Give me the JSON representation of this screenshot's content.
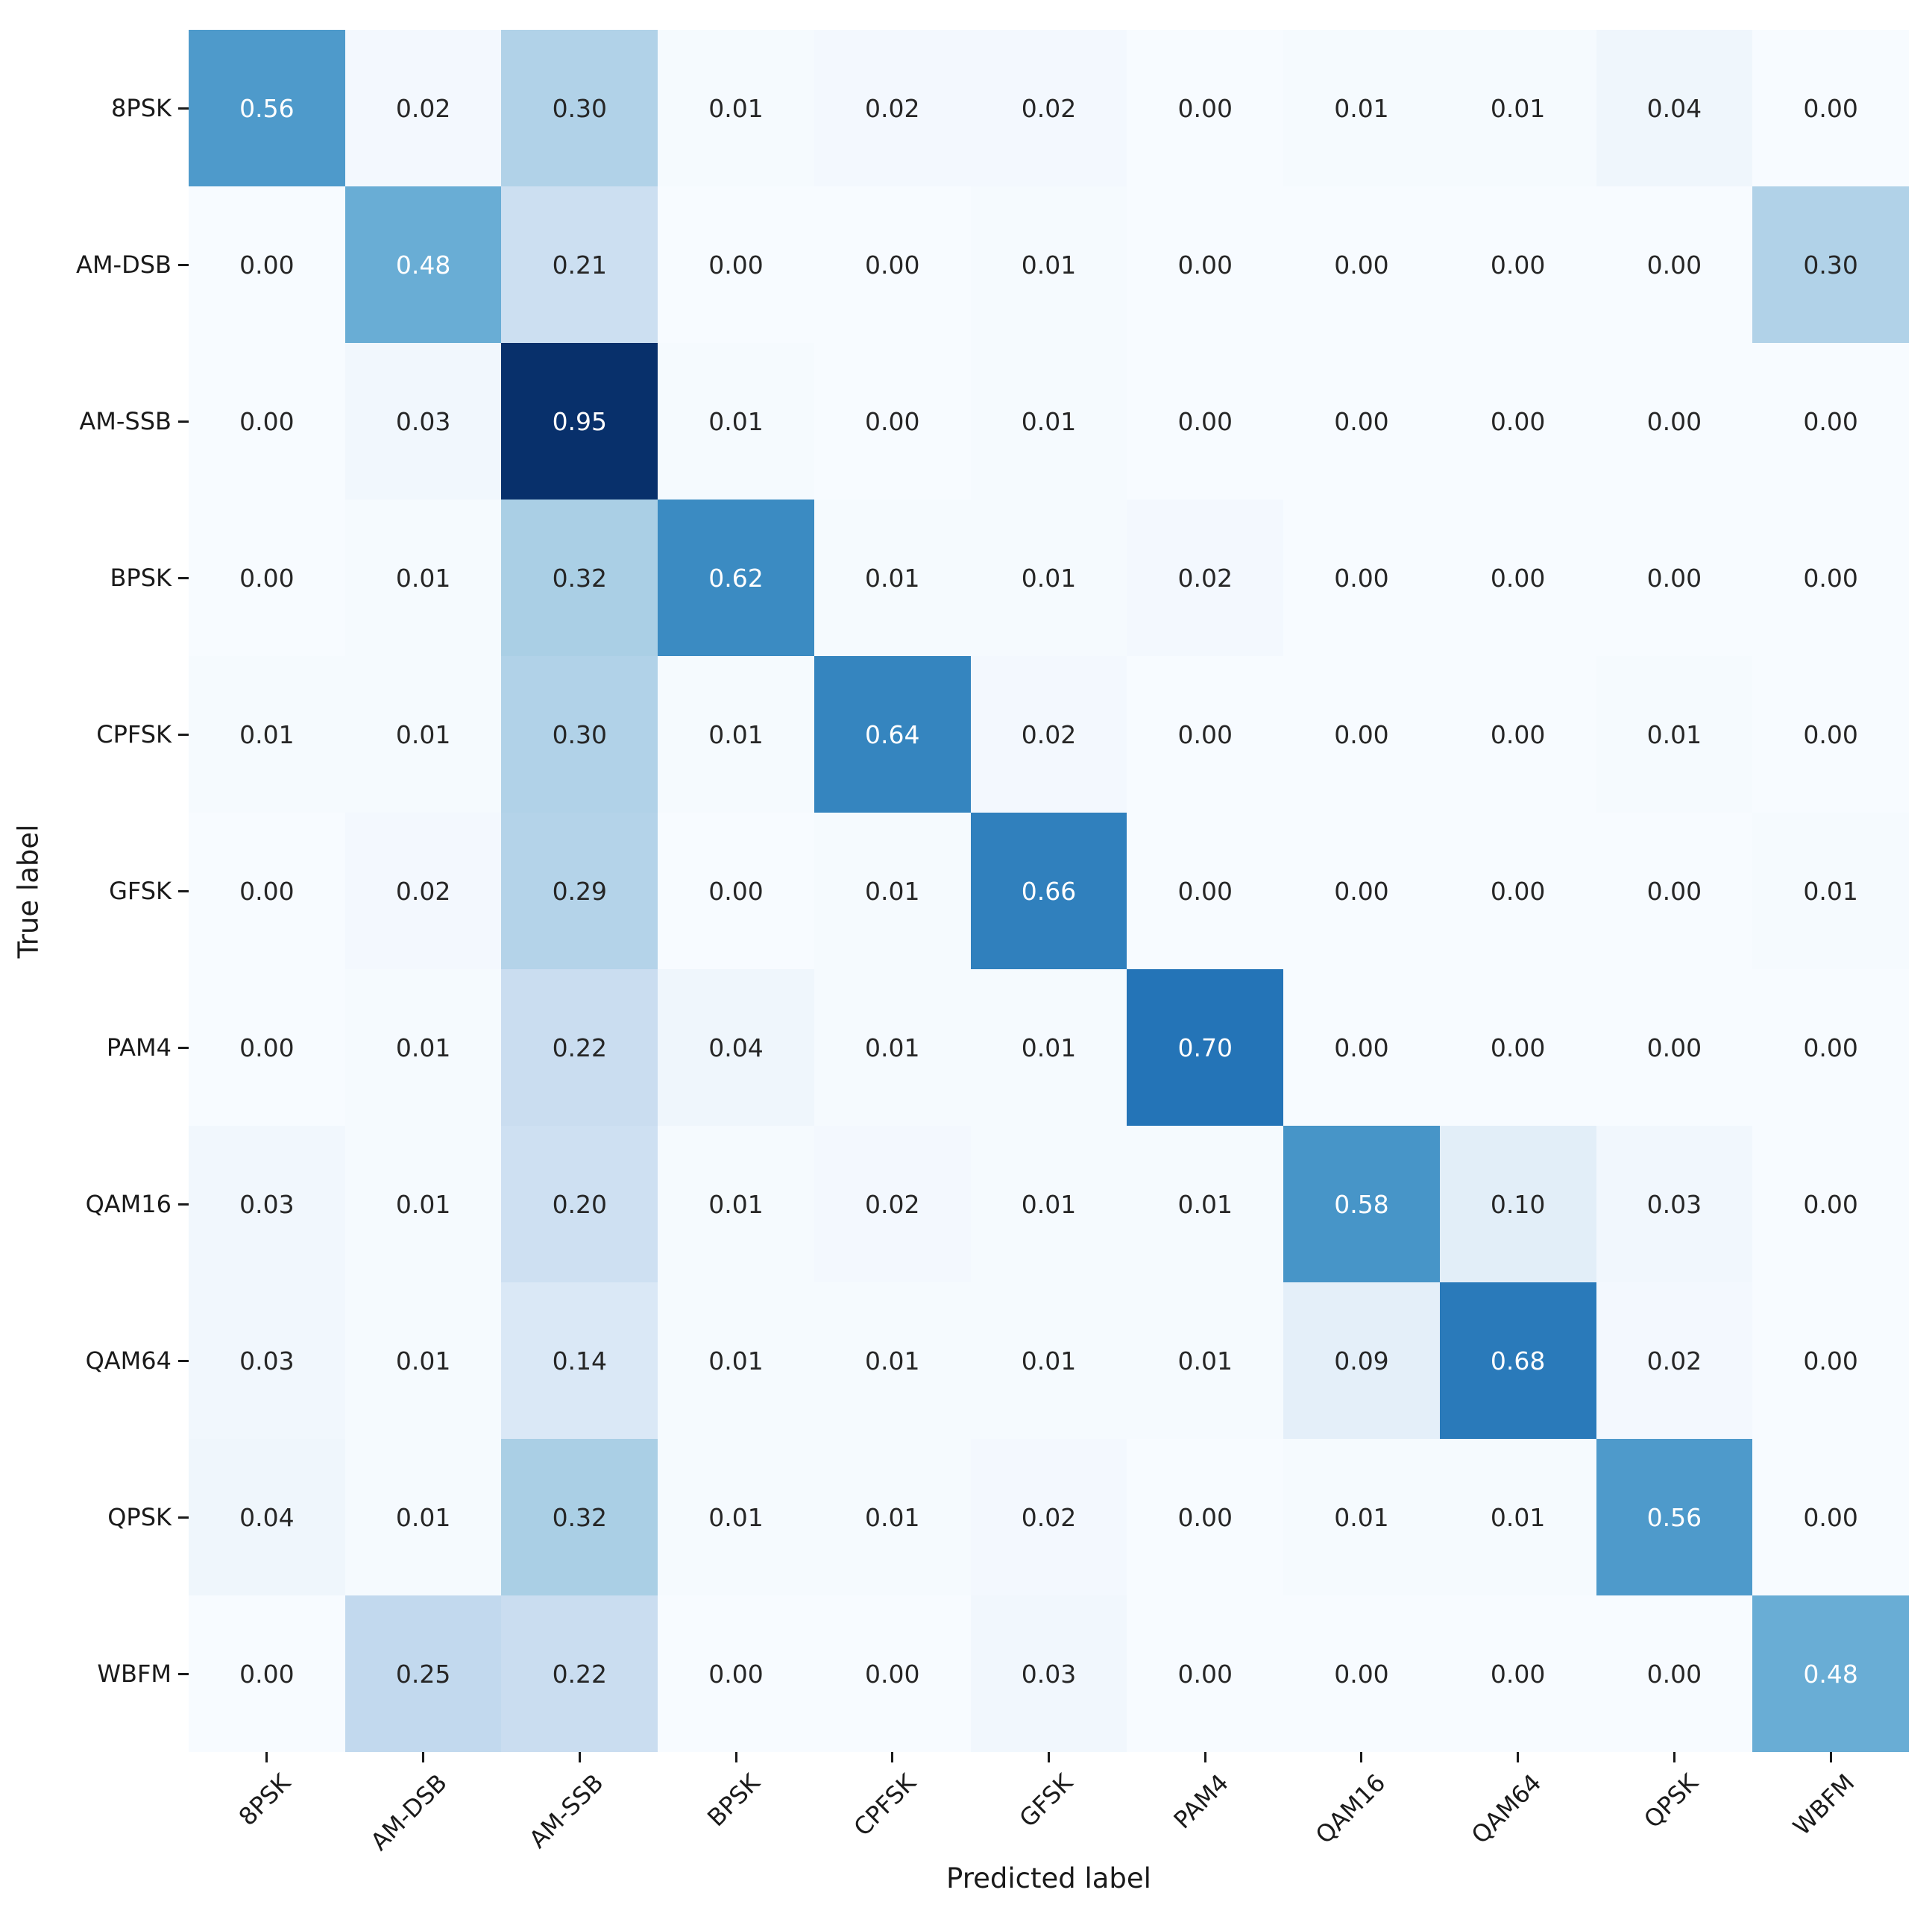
{
  "chart_data": {
    "type": "heatmap",
    "title": "",
    "xlabel": "Predicted label",
    "ylabel": "True label",
    "x_categories": [
      "8PSK",
      "AM-DSB",
      "AM-SSB",
      "BPSK",
      "CPFSK",
      "GFSK",
      "PAM4",
      "QAM16",
      "QAM64",
      "QPSK",
      "WBFM"
    ],
    "y_categories": [
      "8PSK",
      "AM-DSB",
      "AM-SSB",
      "BPSK",
      "CPFSK",
      "GFSK",
      "PAM4",
      "QAM16",
      "QAM64",
      "QPSK",
      "WBFM"
    ],
    "matrix": [
      [
        0.56,
        0.02,
        0.3,
        0.01,
        0.02,
        0.02,
        0.0,
        0.01,
        0.01,
        0.04,
        0.0
      ],
      [
        0.0,
        0.48,
        0.21,
        0.0,
        0.0,
        0.01,
        0.0,
        0.0,
        0.0,
        0.0,
        0.3
      ],
      [
        0.0,
        0.03,
        0.95,
        0.01,
        0.0,
        0.01,
        0.0,
        0.0,
        0.0,
        0.0,
        0.0
      ],
      [
        0.0,
        0.01,
        0.32,
        0.62,
        0.01,
        0.01,
        0.02,
        0.0,
        0.0,
        0.0,
        0.0
      ],
      [
        0.01,
        0.01,
        0.3,
        0.01,
        0.64,
        0.02,
        0.0,
        0.0,
        0.0,
        0.01,
        0.0
      ],
      [
        0.0,
        0.02,
        0.29,
        0.0,
        0.01,
        0.66,
        0.0,
        0.0,
        0.0,
        0.0,
        0.01
      ],
      [
        0.0,
        0.01,
        0.22,
        0.04,
        0.01,
        0.01,
        0.7,
        0.0,
        0.0,
        0.0,
        0.0
      ],
      [
        0.03,
        0.01,
        0.2,
        0.01,
        0.02,
        0.01,
        0.01,
        0.58,
        0.1,
        0.03,
        0.0
      ],
      [
        0.03,
        0.01,
        0.14,
        0.01,
        0.01,
        0.01,
        0.01,
        0.09,
        0.68,
        0.02,
        0.0
      ],
      [
        0.04,
        0.01,
        0.32,
        0.01,
        0.01,
        0.02,
        0.0,
        0.01,
        0.01,
        0.56,
        0.0
      ],
      [
        0.0,
        0.25,
        0.22,
        0.0,
        0.0,
        0.03,
        0.0,
        0.0,
        0.0,
        0.0,
        0.48
      ]
    ],
    "vmin": 0,
    "vmax": 0.95,
    "colormap": "Blues",
    "colormap_stops": [
      "#f7fbff",
      "#deebf7",
      "#c6dbef",
      "#9ecae1",
      "#6baed6",
      "#4292c6",
      "#2171b5",
      "#08519c",
      "#08306b"
    ],
    "annotation_format": ".2f",
    "annotation_colors": {
      "light": "#ffffff",
      "dark": "#262626"
    },
    "axis_text_color": "#1a1a1a",
    "colorbar": false,
    "grid": false,
    "x_tick_rotation_deg": 45
  }
}
